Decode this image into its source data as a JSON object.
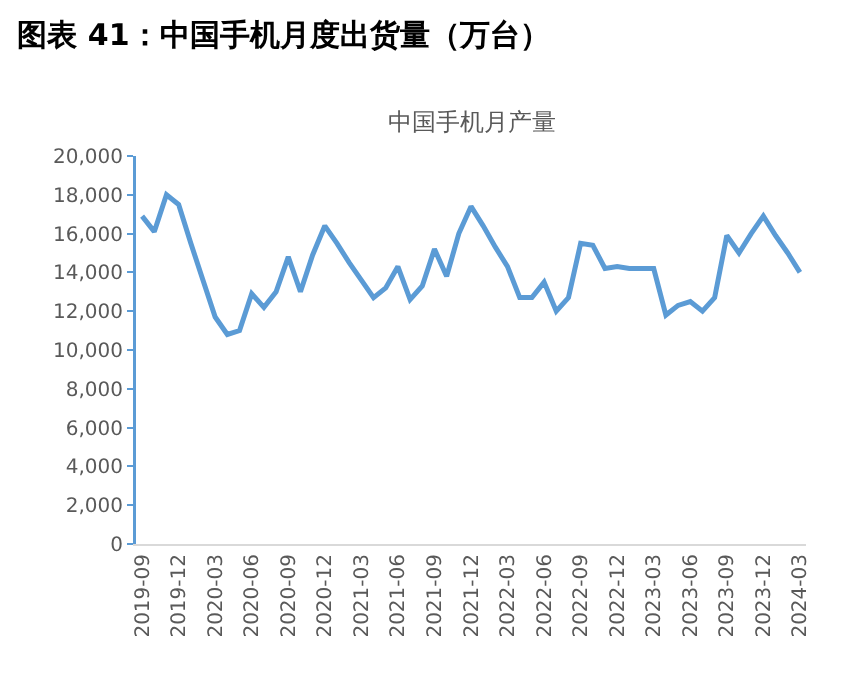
{
  "chart_data": {
    "type": "line",
    "title": "图表 41：中国手机月度出货量（万台）",
    "subtitle": "中国手机月产量",
    "categories": [
      "2019-09",
      null,
      null,
      "2019-12",
      null,
      null,
      "2020-03",
      null,
      null,
      "2020-06",
      null,
      null,
      "2020-09",
      null,
      null,
      "2020-12",
      null,
      null,
      "2021-03",
      null,
      null,
      "2021-06",
      null,
      null,
      "2021-09",
      null,
      null,
      "2021-12",
      null,
      null,
      "2022-03",
      null,
      null,
      "2022-06",
      null,
      null,
      "2022-09",
      null,
      null,
      "2022-12",
      null,
      null,
      "2023-03",
      null,
      null,
      "2023-06",
      null,
      null,
      "2023-09",
      null,
      null,
      "2023-12",
      null,
      null,
      "2024-03"
    ],
    "series": [
      {
        "color": "#5b9bd5",
        "values": [
          16900,
          16100,
          18000,
          17500,
          15500,
          13600,
          11700,
          10800,
          11000,
          12900,
          12200,
          13000,
          14800,
          13000,
          14900,
          16400,
          15500,
          14500,
          13600,
          12700,
          13200,
          14300,
          12600,
          13300,
          15200,
          13800,
          16000,
          17400,
          16400,
          15300,
          14300,
          12700,
          12700,
          13500,
          12000,
          12700,
          15500,
          15400,
          14200,
          14300,
          14200,
          14200,
          14200,
          11800,
          12300,
          12500,
          12000,
          12700,
          15900,
          15000,
          16000,
          16900,
          15900,
          15000,
          14000
        ]
      }
    ],
    "ylim": [
      0,
      20000
    ],
    "yticks": [
      0,
      {
        "value": 2000,
        "label": "2,000"
      },
      {
        "value": 4000,
        "label": "4,000"
      },
      {
        "value": 6000,
        "label": "6,000"
      },
      {
        "value": 8000,
        "label": "8,000"
      },
      {
        "value": 10000,
        "label": "10,000"
      },
      {
        "value": 12000,
        "label": "12,000"
      },
      {
        "value": 14000,
        "label": "14,000"
      },
      {
        "value": 16000,
        "label": "16,000"
      },
      {
        "value": 18000,
        "label": "18,000"
      },
      {
        "value": 20000,
        "label": "20,000"
      }
    ],
    "grid": false,
    "marker": "none",
    "line_style": "solid"
  }
}
